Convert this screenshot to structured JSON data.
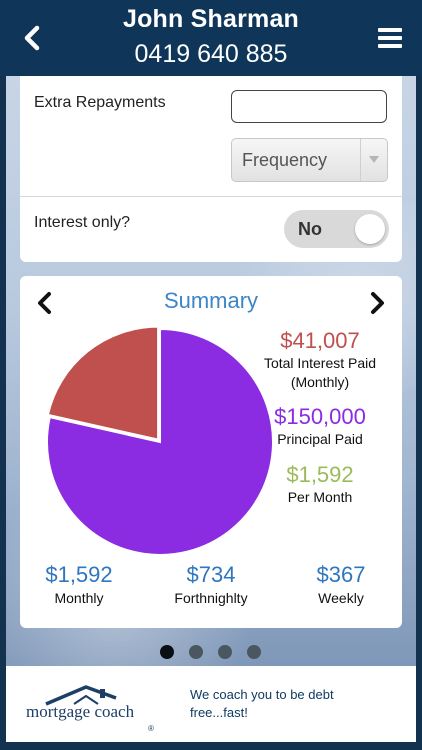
{
  "header": {
    "name": "John Sharman",
    "phone": "0419 640 885",
    "back_icon": "chevron-left-icon",
    "menu_icon": "hamburger-menu-icon"
  },
  "form": {
    "extra_repayments_label": "Extra Repayments",
    "extra_repayments_value": "",
    "frequency_placeholder": "Frequency",
    "interest_only_label": "Interest only?",
    "interest_only_value": "No"
  },
  "summary": {
    "title": "Summary",
    "total_interest": {
      "amount": "$41,007",
      "label_line1": "Total Interest Paid",
      "label_line2": "(Monthly)"
    },
    "principal": {
      "amount": "$150,000",
      "label": "Principal Paid"
    },
    "per_month": {
      "amount": "$1,592",
      "label": "Per Month"
    },
    "monthly": {
      "amount": "$1,592",
      "label": "Monthly"
    },
    "fortnightly": {
      "amount": "$734",
      "label": "Forthnighlty"
    },
    "weekly": {
      "amount": "$367",
      "label": "Weekly"
    }
  },
  "chart_data": {
    "type": "pie",
    "slices": [
      {
        "value": 41007,
        "color": "#c0504d"
      },
      {
        "value": 150000,
        "color": "#8b2be2"
      }
    ]
  },
  "pager": {
    "count": 4,
    "active": 0
  },
  "footer": {
    "logo_text": "mortgage coach",
    "logo_reg": "®",
    "tagline": "We coach you to be debt free...fast!"
  },
  "colors": {
    "header_bg": "#0f3558",
    "interest_red": "#c0504d",
    "principal_purple": "#8b2be2",
    "per_month_green": "#9bbb59",
    "stat_blue": "#2f76bf"
  }
}
